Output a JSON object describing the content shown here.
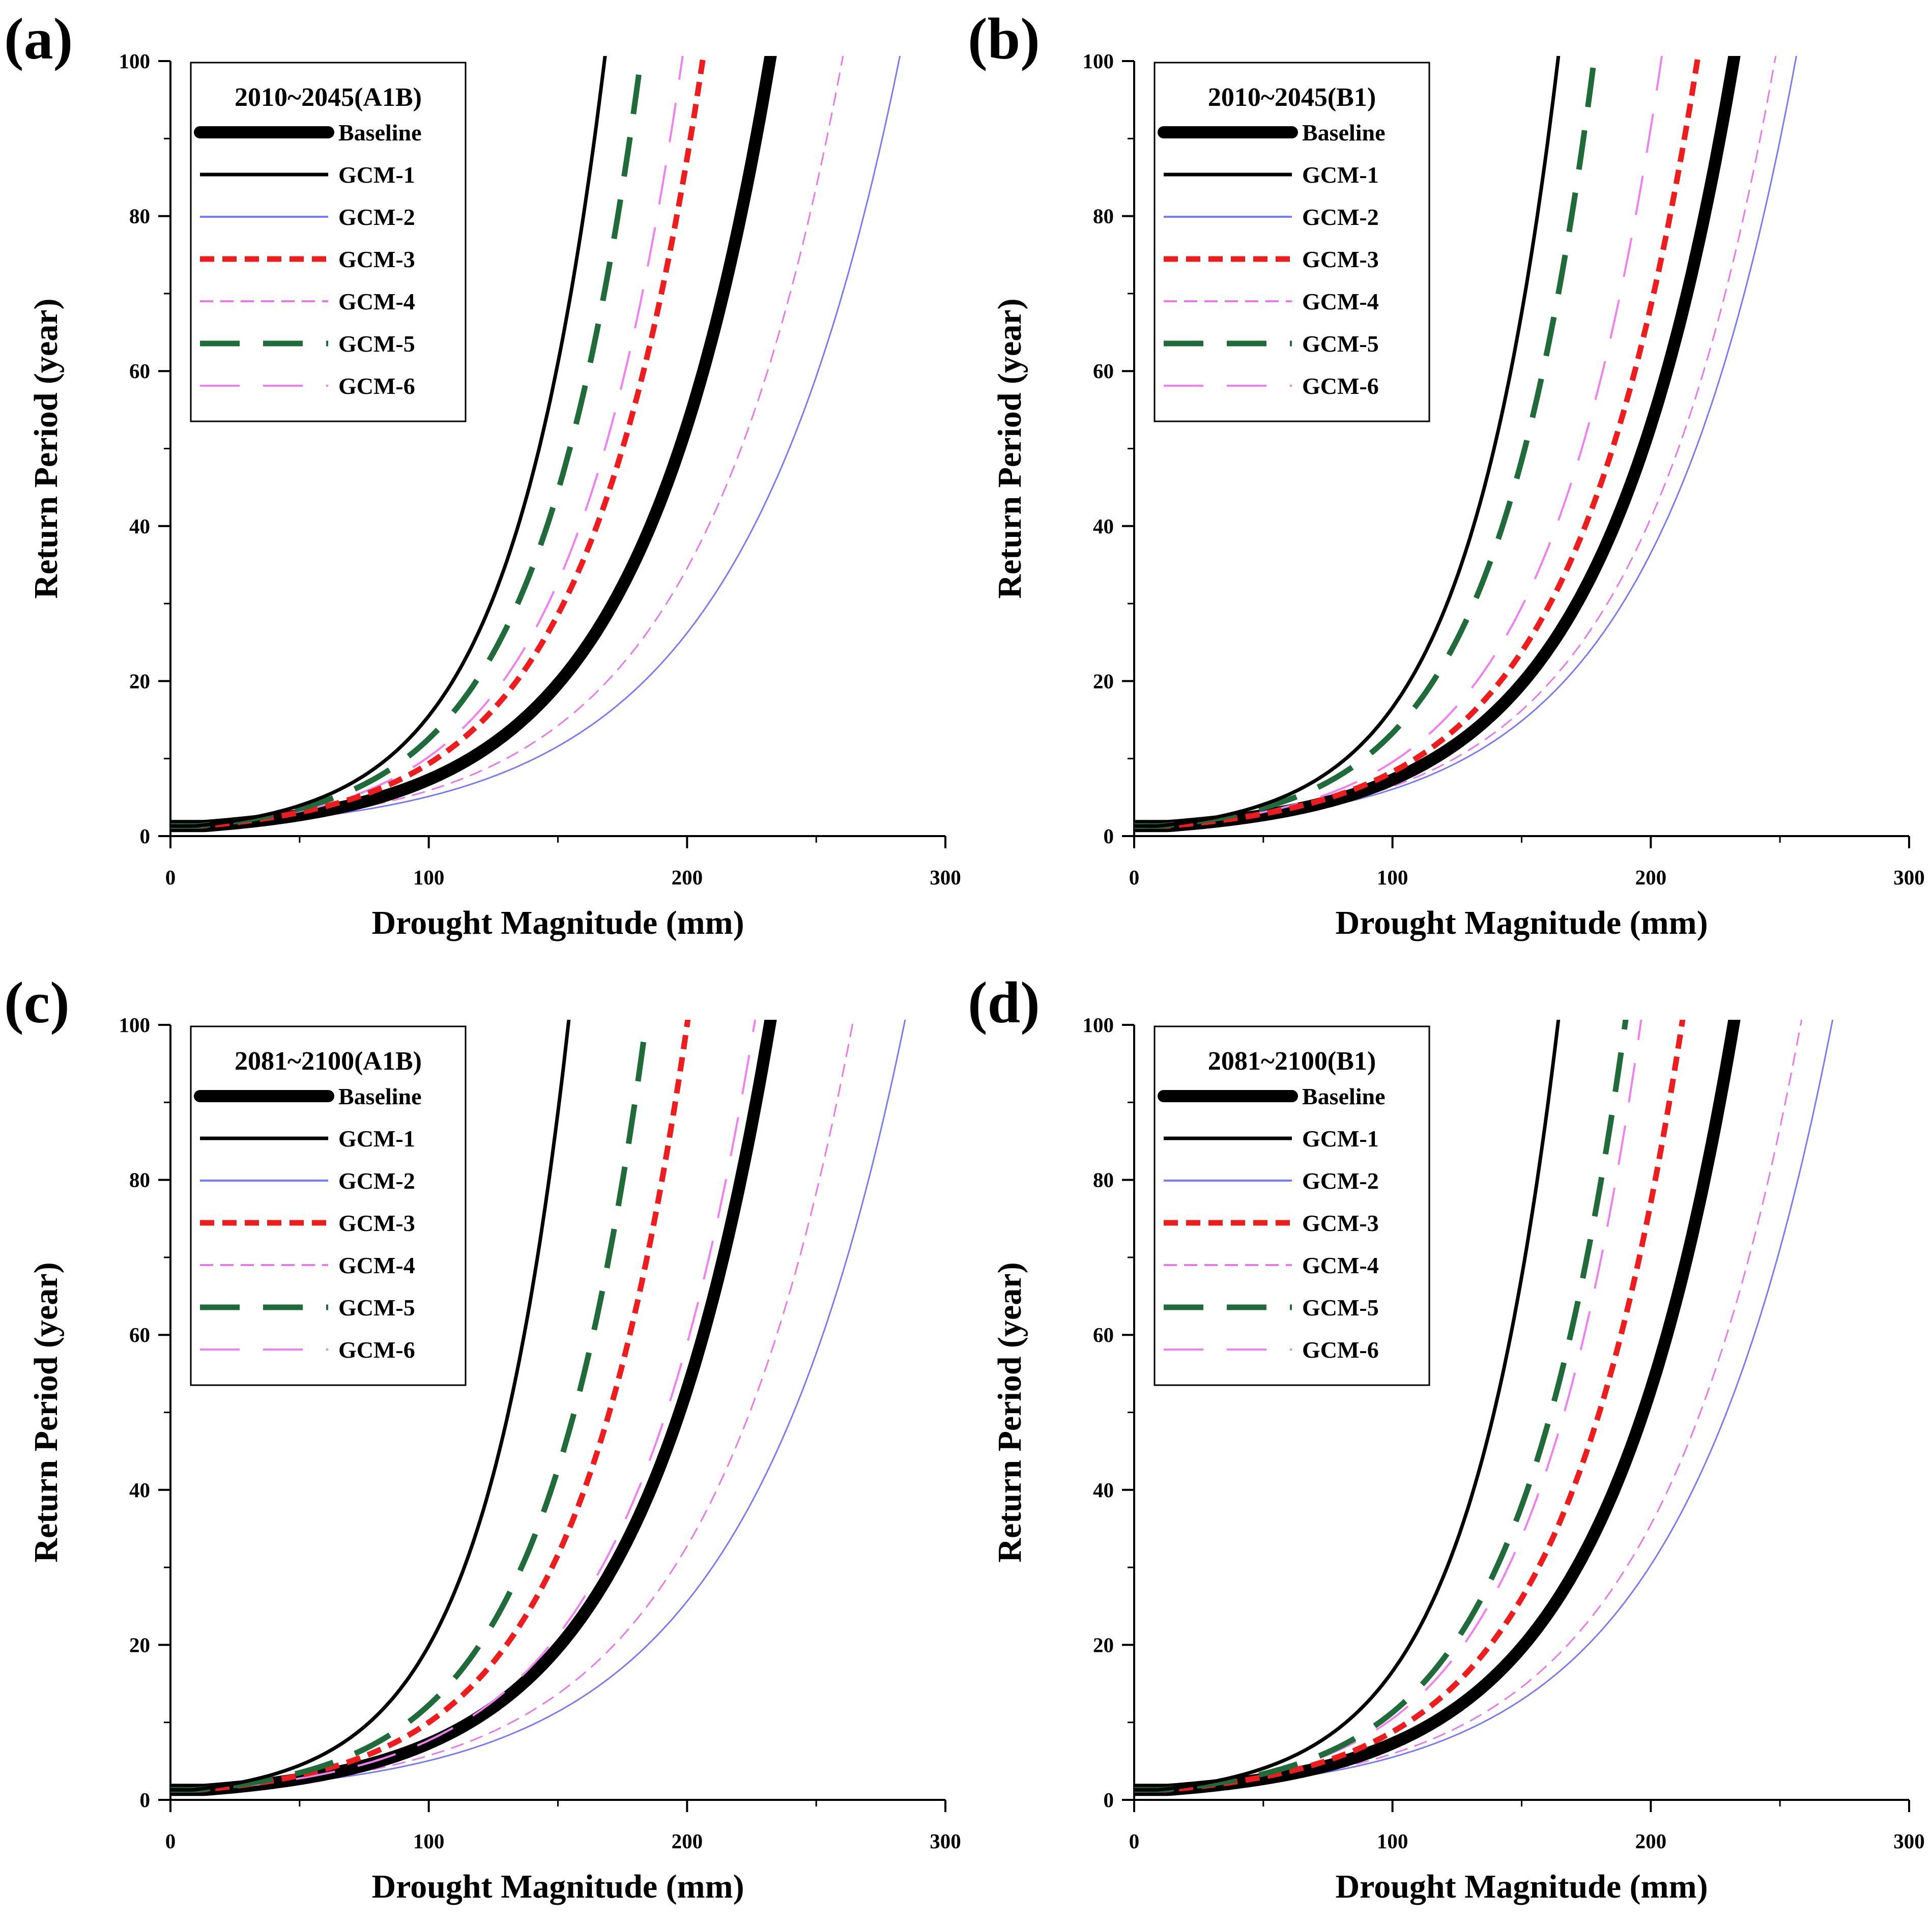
{
  "figure": {
    "panels": [
      "(a)",
      "(b)",
      "(c)",
      "(d)"
    ]
  },
  "chart_data": [
    {
      "type": "line",
      "panel_label": "(a)",
      "title": "2010~2045(A1B)",
      "xlabel": "Drought Magnitude (mm)",
      "ylabel": "Return Period (year)",
      "xlim": [
        0,
        300
      ],
      "ylim": [
        0,
        100
      ],
      "xticks": [
        "0",
        "100",
        "200",
        "300"
      ],
      "yticks": [
        "0",
        "20",
        "40",
        "60",
        "80",
        "100"
      ],
      "grid": false,
      "legend_position": "top-left",
      "series": [
        {
          "name": "Baseline",
          "color": "#000000",
          "style": "thick",
          "m100": 232
        },
        {
          "name": "GCM-1",
          "color": "#000000",
          "style": "solid",
          "m100": 168
        },
        {
          "name": "GCM-2",
          "color": "#7a7af2",
          "style": "thin",
          "m100": 282
        },
        {
          "name": "GCM-3",
          "color": "#ee1c1c",
          "style": "short-dash",
          "m100": 206
        },
        {
          "name": "GCM-4",
          "color": "#e879e8",
          "style": "thin-dash",
          "m100": 260
        },
        {
          "name": "GCM-5",
          "color": "#1f6b3a",
          "style": "long-dash",
          "m100": 182
        },
        {
          "name": "GCM-6",
          "color": "#f080f0",
          "style": "long-dash-thin",
          "m100": 198
        }
      ]
    },
    {
      "type": "line",
      "panel_label": "(b)",
      "title": "2010~2045(B1)",
      "xlabel": "Drought Magnitude (mm)",
      "ylabel": "Return Period (year)",
      "xlim": [
        0,
        300
      ],
      "ylim": [
        0,
        100
      ],
      "xticks": [
        "0",
        "100",
        "200",
        "300"
      ],
      "yticks": [
        "0",
        "20",
        "40",
        "60",
        "80",
        "100"
      ],
      "grid": false,
      "legend_position": "top-left",
      "series": [
        {
          "name": "Baseline",
          "color": "#000000",
          "style": "thick",
          "m100": 232
        },
        {
          "name": "GCM-1",
          "color": "#000000",
          "style": "solid",
          "m100": 164
        },
        {
          "name": "GCM-2",
          "color": "#7a7af2",
          "style": "thin",
          "m100": 256
        },
        {
          "name": "GCM-3",
          "color": "#ee1c1c",
          "style": "short-dash",
          "m100": 218
        },
        {
          "name": "GCM-4",
          "color": "#e879e8",
          "style": "thin-dash",
          "m100": 248
        },
        {
          "name": "GCM-5",
          "color": "#1f6b3a",
          "style": "long-dash",
          "m100": 178
        },
        {
          "name": "GCM-6",
          "color": "#f080f0",
          "style": "long-dash-thin",
          "m100": 204
        }
      ]
    },
    {
      "type": "line",
      "panel_label": "(c)",
      "title": "2081~2100(A1B)",
      "xlabel": "Drought Magnitude (mm)",
      "ylabel": "Return Period (year)",
      "xlim": [
        0,
        300
      ],
      "ylim": [
        0,
        100
      ],
      "xticks": [
        "0",
        "100",
        "200",
        "300"
      ],
      "yticks": [
        "0",
        "20",
        "40",
        "60",
        "80",
        "100"
      ],
      "grid": false,
      "legend_position": "top-left",
      "series": [
        {
          "name": "Baseline",
          "color": "#000000",
          "style": "thick",
          "m100": 232
        },
        {
          "name": "GCM-1",
          "color": "#000000",
          "style": "solid",
          "m100": 154
        },
        {
          "name": "GCM-2",
          "color": "#7a7af2",
          "style": "thin",
          "m100": 284
        },
        {
          "name": "GCM-3",
          "color": "#ee1c1c",
          "style": "short-dash",
          "m100": 200
        },
        {
          "name": "GCM-4",
          "color": "#e879e8",
          "style": "thin-dash",
          "m100": 264
        },
        {
          "name": "GCM-5",
          "color": "#1f6b3a",
          "style": "long-dash",
          "m100": 184
        },
        {
          "name": "GCM-6",
          "color": "#f080f0",
          "style": "long-dash-thin",
          "m100": 226
        }
      ]
    },
    {
      "type": "line",
      "panel_label": "(d)",
      "title": "2081~2100(B1)",
      "xlabel": "Drought Magnitude (mm)",
      "ylabel": "Return Period (year)",
      "xlim": [
        0,
        300
      ],
      "ylim": [
        0,
        100
      ],
      "xticks": [
        "0",
        "100",
        "200",
        "300"
      ],
      "yticks": [
        "0",
        "20",
        "40",
        "60",
        "80",
        "100"
      ],
      "grid": false,
      "legend_position": "top-left",
      "series": [
        {
          "name": "Baseline",
          "color": "#000000",
          "style": "thick",
          "m100": 232
        },
        {
          "name": "GCM-1",
          "color": "#000000",
          "style": "solid",
          "m100": 164
        },
        {
          "name": "GCM-2",
          "color": "#7a7af2",
          "style": "thin",
          "m100": 270
        },
        {
          "name": "GCM-3",
          "color": "#ee1c1c",
          "style": "short-dash",
          "m100": 212
        },
        {
          "name": "GCM-4",
          "color": "#e879e8",
          "style": "thin-dash",
          "m100": 258
        },
        {
          "name": "GCM-5",
          "color": "#1f6b3a",
          "style": "long-dash",
          "m100": 190
        },
        {
          "name": "GCM-6",
          "color": "#f080f0",
          "style": "long-dash-thin",
          "m100": 196
        }
      ]
    }
  ]
}
